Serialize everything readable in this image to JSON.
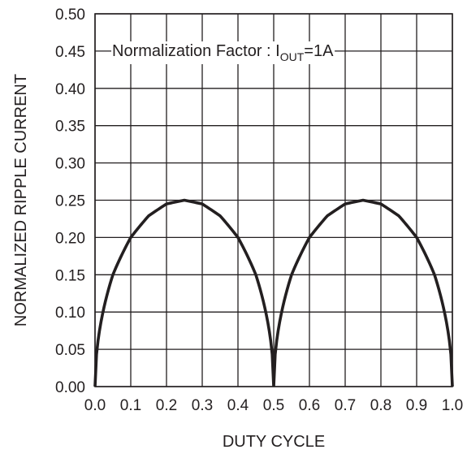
{
  "chart_data": {
    "type": "line",
    "title": "",
    "xlabel": "DUTY CYCLE",
    "ylabel": "NORMALIZED RIPPLE CURRENT",
    "xlim": [
      0.0,
      1.0
    ],
    "ylim": [
      0.0,
      0.5
    ],
    "x_ticks": [
      "0.0",
      "0.1",
      "0.2",
      "0.3",
      "0.4",
      "0.5",
      "0.6",
      "0.7",
      "0.8",
      "0.9",
      "1.0"
    ],
    "y_ticks": [
      "0.00",
      "0.05",
      "0.10",
      "0.15",
      "0.20",
      "0.25",
      "0.30",
      "0.35",
      "0.40",
      "0.45",
      "0.50"
    ],
    "grid": true,
    "annotation": {
      "prefix": "Normalization Factor : I",
      "subscript": "OUT",
      "suffix": "=1A"
    },
    "series": [
      {
        "x": [
          0.0,
          0.05,
          0.1,
          0.15,
          0.2,
          0.25,
          0.3,
          0.35,
          0.4,
          0.45,
          0.5,
          0.55,
          0.6,
          0.65,
          0.7,
          0.75,
          0.8,
          0.85,
          0.9,
          0.95,
          1.0
        ],
        "y": [
          0.0,
          0.15,
          0.2,
          0.229,
          0.245,
          0.25,
          0.245,
          0.229,
          0.2,
          0.15,
          0.0,
          0.15,
          0.2,
          0.229,
          0.245,
          0.25,
          0.245,
          0.229,
          0.2,
          0.15,
          0.0
        ]
      }
    ]
  }
}
